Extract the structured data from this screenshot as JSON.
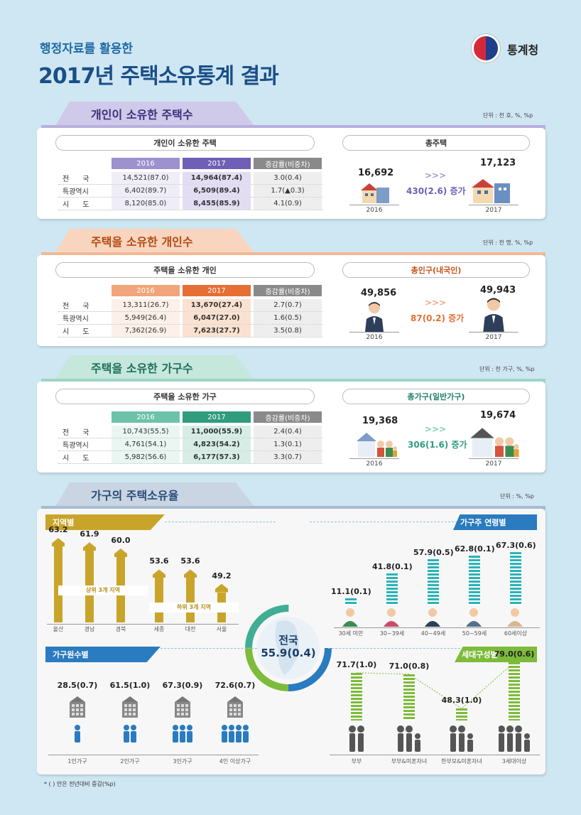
{
  "header": {
    "subtitle": "행정자료를 활용한",
    "title": "2017년 주택소유통계 결과",
    "logo_text": "통계청"
  },
  "colors": {
    "purple": "#8b7dc4",
    "orange": "#ef8a55",
    "teal": "#3fae94",
    "gold": "#c8a52a",
    "blue": "#2a7bc0",
    "green": "#7dbb3a"
  },
  "section1": {
    "ribbon": "개인이 소유한 주택수",
    "unit": "단위 : 천 호, %, %p",
    "table_title": "개인이 소유한 주택",
    "headers": [
      "2016",
      "2017",
      "증감률(비중차)"
    ],
    "rows": [
      {
        "label": "전      국",
        "v2016": "14,521(87.0)",
        "v2017": "14,964(87.4)",
        "change": "3.0(0.4)"
      },
      {
        "label": "특광역시",
        "v2016": "6,402(89.7)",
        "v2017": "6,509(89.4)",
        "change": "1.7(▲0.3)"
      },
      {
        "label": "시      도",
        "v2016": "8,120(85.0)",
        "v2017": "8,455(85.9)",
        "change": "4.1(0.9)"
      }
    ],
    "total_title": "총주택",
    "total_2016": "16,692",
    "total_2017": "17,123",
    "total_change": "430(2.6) 증가",
    "year_2016": "2016",
    "year_2017": "2017"
  },
  "section2": {
    "ribbon": "주택을 소유한 개인수",
    "unit": "단위 : 천 명, %, %p",
    "table_title": "주택을 소유한 개인",
    "headers": [
      "2016",
      "2017",
      "증감률(비중차)"
    ],
    "rows": [
      {
        "label": "전      국",
        "v2016": "13,311(26.7)",
        "v2017": "13,670(27.4)",
        "change": "2.7(0.7)"
      },
      {
        "label": "특광역시",
        "v2016": "5,949(26.4)",
        "v2017": "6,047(27.0)",
        "change": "1.6(0.5)"
      },
      {
        "label": "시      도",
        "v2016": "7,362(26.9)",
        "v2017": "7,623(27.7)",
        "change": "3.5(0.8)"
      }
    ],
    "total_title": "총인구(내국인)",
    "total_2016": "49,856",
    "total_2017": "49,943",
    "total_change": "87(0.2) 증가",
    "year_2016": "2016",
    "year_2017": "2017"
  },
  "section3": {
    "ribbon": "주택을 소유한 가구수",
    "unit": "단위 : 천 가구, %, %p",
    "table_title": "주택을 소유한 가구",
    "headers": [
      "2016",
      "2017",
      "증감률(비중차)"
    ],
    "rows": [
      {
        "label": "전      국",
        "v2016": "10,743(55.5)",
        "v2017": "11,000(55.9)",
        "change": "2.4(0.4)"
      },
      {
        "label": "특광역시",
        "v2016": "4,761(54.1)",
        "v2017": "4,823(54.2)",
        "change": "1.3(0.1)"
      },
      {
        "label": "시      도",
        "v2016": "5,982(56.6)",
        "v2017": "6,177(57.3)",
        "change": "3.3(0.7)"
      }
    ],
    "total_title": "총가구(일반가구)",
    "total_2016": "19,368",
    "total_2017": "19,674",
    "total_change": "306(1.6) 증가",
    "year_2016": "2016",
    "year_2017": "2017"
  },
  "section4": {
    "ribbon": "가구의 주택소유율",
    "unit": "단위 : %, %p",
    "center_label": "전국",
    "center_value": "55.9(0.4)",
    "regional": {
      "label": "지역별",
      "top_caption": "상위 3개 지역",
      "bottom_caption": "하위 3개 지역",
      "items": [
        {
          "name": "울산",
          "value": "63.2",
          "v": 63.2
        },
        {
          "name": "경남",
          "value": "61.9",
          "v": 61.9
        },
        {
          "name": "경북",
          "value": "60.0",
          "v": 60.0
        },
        {
          "name": "세종",
          "value": "53.6",
          "v": 53.6
        },
        {
          "name": "대전",
          "value": "53.6",
          "v": 53.6
        },
        {
          "name": "서울",
          "value": "49.2",
          "v": 49.2
        }
      ]
    },
    "age": {
      "label": "가구주 연령별",
      "items": [
        {
          "name": "30세 미만",
          "value": "11.1(0.1)",
          "v": 11.1
        },
        {
          "name": "30~39세",
          "value": "41.8(0.1)",
          "v": 41.8
        },
        {
          "name": "40~49세",
          "value": "57.9(0.5)",
          "v": 57.9
        },
        {
          "name": "50~59세",
          "value": "62.8(0.1)",
          "v": 62.8
        },
        {
          "name": "60세이상",
          "value": "67.3(0.6)",
          "v": 67.3
        }
      ]
    },
    "members": {
      "label": "가구원수별",
      "items": [
        {
          "name": "1인가구",
          "value": "28.5(0.7)",
          "people": 1
        },
        {
          "name": "2인가구",
          "value": "61.5(1.0)",
          "people": 2
        },
        {
          "name": "3인가구",
          "value": "67.3(0.9)",
          "people": 3
        },
        {
          "name": "4인 이상가구",
          "value": "72.6(0.7)",
          "people": 4
        }
      ]
    },
    "generation": {
      "label": "세대구성별",
      "items": [
        {
          "name": "부부",
          "value": "71.7(1.0)",
          "v": 71.7
        },
        {
          "name": "부부&미혼자녀",
          "value": "71.0(0.8)",
          "v": 71.0
        },
        {
          "name": "한부모&미혼자녀",
          "value": "48.3(1.0)",
          "v": 48.3
        },
        {
          "name": "3세대이상",
          "value": "79.0(0.6)",
          "v": 79.0
        }
      ]
    }
  },
  "footnote": "* (  ) 안은 전년대비 증감(%p)"
}
